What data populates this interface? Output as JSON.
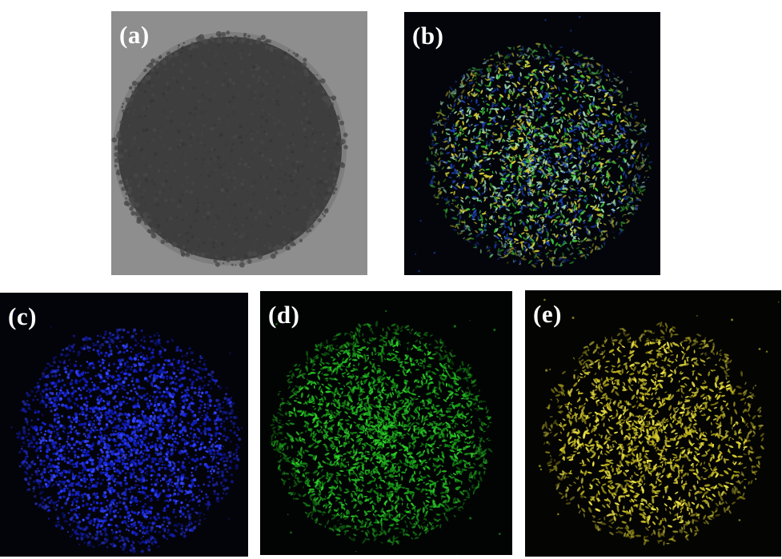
{
  "panels": [
    {
      "id": "a",
      "label": "(a)",
      "kind": "grayscale-micrograph",
      "background": "#8e8e8e",
      "color": "#3e3e3e"
    },
    {
      "id": "b",
      "label": "(b)",
      "kind": "composite-map",
      "background": "#03050a",
      "colors": [
        "#1d3fae",
        "#3fc43a",
        "#d9d23a",
        "#9ad6b0"
      ]
    },
    {
      "id": "c",
      "label": "(c)",
      "kind": "element-map",
      "background": "#03030a",
      "colors": [
        "#1a2ae6",
        "#0f1bb8",
        "#3346ff"
      ]
    },
    {
      "id": "d",
      "label": "(d)",
      "kind": "element-map",
      "background": "#020403",
      "colors": [
        "#1fb51f",
        "#2fd02a",
        "#148a14"
      ]
    },
    {
      "id": "e",
      "label": "(e)",
      "kind": "element-map",
      "background": "#040402",
      "colors": [
        "#d6cc2a",
        "#b8ac1c",
        "#f0e54a"
      ]
    }
  ]
}
